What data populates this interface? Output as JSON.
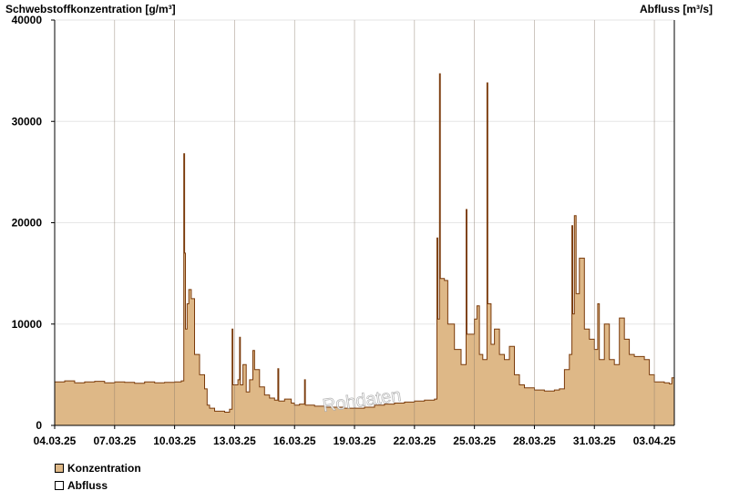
{
  "chart_data": {
    "type": "area",
    "y_axis_left_label": "Schwebstoffkonzentration [g/m³]",
    "y_axis_right_label": "Abfluss [m³/s]",
    "ylim": [
      0,
      40000
    ],
    "y_ticks": [
      "0",
      "10000",
      "20000",
      "30000",
      "40000"
    ],
    "x_ticks": [
      "04.03.25",
      "07.03.25",
      "10.03.25",
      "13.03.25",
      "16.03.25",
      "19.03.25",
      "22.03.25",
      "25.03.25",
      "28.03.25",
      "31.03.25",
      "03.04.25"
    ],
    "x_start": "04.03.25",
    "x_end": "04.04.25",
    "watermark": "Rohdaten",
    "grid": true,
    "legend_position": "bottom-left",
    "series": [
      {
        "name": "Konzentration",
        "color": "#deb887",
        "line_color": "#7a3a0a",
        "points": [
          [
            "04.03.25 00:00",
            4300
          ],
          [
            "04.03.25 12:00",
            4400
          ],
          [
            "05.03.25 00:00",
            4200
          ],
          [
            "05.03.25 12:00",
            4300
          ],
          [
            "06.03.25 00:00",
            4350
          ],
          [
            "06.03.25 12:00",
            4200
          ],
          [
            "07.03.25 00:00",
            4300
          ],
          [
            "07.03.25 12:00",
            4250
          ],
          [
            "08.03.25 00:00",
            4150
          ],
          [
            "08.03.25 12:00",
            4300
          ],
          [
            "09.03.25 00:00",
            4200
          ],
          [
            "09.03.25 12:00",
            4250
          ],
          [
            "10.03.25 00:00",
            4300
          ],
          [
            "10.03.25 08:00",
            4400
          ],
          [
            "10.03.25 11:00",
            26800
          ],
          [
            "10.03.25 12:00",
            17000
          ],
          [
            "10.03.25 13:00",
            9500
          ],
          [
            "10.03.25 15:00",
            12000
          ],
          [
            "10.03.25 17:00",
            13400
          ],
          [
            "10.03.25 20:00",
            12500
          ],
          [
            "11.03.25 00:00",
            7000
          ],
          [
            "11.03.25 06:00",
            5000
          ],
          [
            "11.03.25 12:00",
            3600
          ],
          [
            "11.03.25 15:00",
            2000
          ],
          [
            "11.03.25 18:00",
            1700
          ],
          [
            "12.03.25 00:00",
            1400
          ],
          [
            "12.03.25 12:00",
            1300
          ],
          [
            "12.03.25 18:00",
            1600
          ],
          [
            "12.03.25 21:00",
            9500
          ],
          [
            "12.03.25 22:00",
            4000
          ],
          [
            "13.03.25 04:00",
            4500
          ],
          [
            "13.03.25 06:00",
            8700
          ],
          [
            "13.03.25 07:00",
            4000
          ],
          [
            "13.03.25 10:00",
            6000
          ],
          [
            "13.03.25 14:00",
            3300
          ],
          [
            "13.03.25 18:00",
            4500
          ],
          [
            "13.03.25 22:00",
            7400
          ],
          [
            "14.03.25 00:00",
            5500
          ],
          [
            "14.03.25 06:00",
            3800
          ],
          [
            "14.03.25 12:00",
            3000
          ],
          [
            "14.03.25 18:00",
            2700
          ],
          [
            "15.03.25 00:00",
            2500
          ],
          [
            "15.03.25 04:00",
            5600
          ],
          [
            "15.03.25 05:00",
            2400
          ],
          [
            "15.03.25 12:00",
            2600
          ],
          [
            "15.03.25 20:00",
            2200
          ],
          [
            "16.03.25 00:00",
            2000
          ],
          [
            "16.03.25 06:00",
            2100
          ],
          [
            "16.03.25 12:00",
            4500
          ],
          [
            "16.03.25 13:00",
            2000
          ],
          [
            "17.03.25 00:00",
            1900
          ],
          [
            "17.03.25 12:00",
            1800
          ],
          [
            "18.03.25 00:00",
            1800
          ],
          [
            "18.03.25 12:00",
            1700
          ],
          [
            "19.03.25 12:00",
            1800
          ],
          [
            "20.03.25 00:00",
            2000
          ],
          [
            "20.03.25 12:00",
            2100
          ],
          [
            "21.03.25 00:00",
            2200
          ],
          [
            "21.03.25 12:00",
            2300
          ],
          [
            "22.03.25 00:00",
            2400
          ],
          [
            "22.03.25 12:00",
            2500
          ],
          [
            "23.03.25 00:00",
            2600
          ],
          [
            "23.03.25 03:00",
            18500
          ],
          [
            "23.03.25 04:00",
            10500
          ],
          [
            "23.03.25 06:00",
            34700
          ],
          [
            "23.03.25 07:00",
            14500
          ],
          [
            "23.03.25 12:00",
            14300
          ],
          [
            "23.03.25 16:00",
            10000
          ],
          [
            "24.03.25 00:00",
            7500
          ],
          [
            "24.03.25 08:00",
            6000
          ],
          [
            "24.03.25 14:00",
            21300
          ],
          [
            "24.03.25 15:00",
            9000
          ],
          [
            "25.03.25 00:00",
            10500
          ],
          [
            "25.03.25 03:00",
            11800
          ],
          [
            "25.03.25 06:00",
            7000
          ],
          [
            "25.03.25 10:00",
            6500
          ],
          [
            "25.03.25 15:00",
            33800
          ],
          [
            "25.03.25 16:00",
            12000
          ],
          [
            "25.03.25 20:00",
            8000
          ],
          [
            "26.03.25 00:00",
            9500
          ],
          [
            "26.03.25 06:00",
            7000
          ],
          [
            "26.03.25 12:00",
            6500
          ],
          [
            "26.03.25 18:00",
            7800
          ],
          [
            "27.03.25 00:00",
            5000
          ],
          [
            "27.03.25 06:00",
            4000
          ],
          [
            "27.03.25 12:00",
            3700
          ],
          [
            "28.03.25 00:00",
            3500
          ],
          [
            "28.03.25 12:00",
            3400
          ],
          [
            "29.03.25 00:00",
            3500
          ],
          [
            "29.03.25 06:00",
            3600
          ],
          [
            "29.03.25 12:00",
            5500
          ],
          [
            "29.03.25 18:00",
            7000
          ],
          [
            "29.03.25 21:00",
            19700
          ],
          [
            "29.03.25 22:00",
            11000
          ],
          [
            "30.03.25 00:00",
            20700
          ],
          [
            "30.03.25 02:00",
            13000
          ],
          [
            "30.03.25 06:00",
            16500
          ],
          [
            "30.03.25 12:00",
            9500
          ],
          [
            "30.03.25 18:00",
            8500
          ],
          [
            "31.03.25 00:00",
            7500
          ],
          [
            "31.03.25 04:00",
            12000
          ],
          [
            "31.03.25 06:00",
            6500
          ],
          [
            "31.03.25 12:00",
            10000
          ],
          [
            "31.03.25 18:00",
            6500
          ],
          [
            "01.04.25 00:00",
            6000
          ],
          [
            "01.04.25 06:00",
            10600
          ],
          [
            "01.04.25 12:00",
            8500
          ],
          [
            "01.04.25 18:00",
            7000
          ],
          [
            "02.04.25 00:00",
            6800
          ],
          [
            "02.04.25 12:00",
            6500
          ],
          [
            "02.04.25 18:00",
            5000
          ],
          [
            "03.04.25 00:00",
            4300
          ],
          [
            "03.04.25 12:00",
            4200
          ],
          [
            "03.04.25 18:00",
            4100
          ],
          [
            "03.04.25 21:00",
            4700
          ],
          [
            "04.04.25 00:00",
            4300
          ]
        ]
      },
      {
        "name": "Abfluss",
        "color": "#ffffff",
        "line_color": "#000000",
        "points": []
      }
    ]
  },
  "legend": {
    "items": [
      {
        "label": "Konzentration",
        "color": "#deb887"
      },
      {
        "label": "Abfluss",
        "color": "#ffffff"
      }
    ]
  }
}
